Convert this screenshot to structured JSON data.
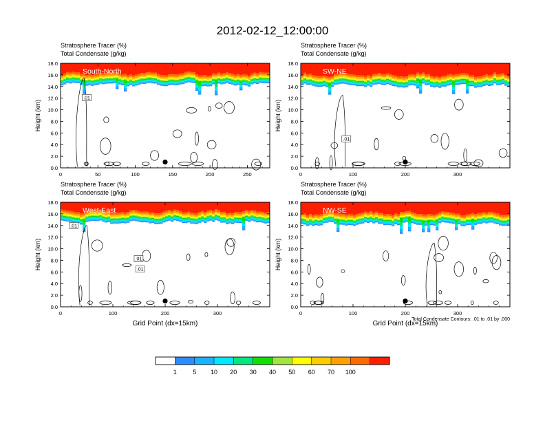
{
  "title": "2012-02-12_12:00:00",
  "chart_data": {
    "type": "heatmap",
    "title": "2012-02-12_12:00:00",
    "field_labels": {
      "tracer": "Stratosphere Tracer",
      "tracer_unit": "(%)",
      "condensate": "Total Condensate",
      "condensate_unit": "(g/kg)"
    },
    "ylabel": "Height (km)",
    "xlabel": "Grid Point (dx=15km)",
    "ylim": [
      0,
      18
    ],
    "yticks": [
      "0.0",
      "2.0",
      "4.0",
      "6.0",
      "8.0",
      "10.0",
      "12.0",
      "14.0",
      "16.0",
      "18.0"
    ],
    "contour_note": "Total Condensate Contours: .01 to .01 by .000",
    "colorbar": {
      "labels": [
        "1",
        "5",
        "10",
        "20",
        "30",
        "40",
        "50",
        "60",
        "70",
        "100"
      ],
      "colors": [
        "#ffffff",
        "#2d8cff",
        "#1ab2ff",
        "#00e7ff",
        "#00e67d",
        "#10e000",
        "#a0e63c",
        "#ffff00",
        "#ffcc00",
        "#ffa000",
        "#ff6a00",
        "#ff1e00"
      ]
    },
    "panels": [
      {
        "label": "South-North",
        "xlim": [
          0,
          280
        ],
        "xticks": [
          0,
          50,
          100,
          150,
          200,
          250
        ],
        "show_xlabel": false,
        "contour_labels": [
          ".01"
        ]
      },
      {
        "label": "SW-NE",
        "xlim": [
          0,
          400
        ],
        "xticks": [
          0,
          100,
          200,
          300
        ],
        "show_xlabel": false,
        "contour_labels": [
          ".01"
        ]
      },
      {
        "label": "West-East",
        "xlim": [
          0,
          400
        ],
        "xticks": [
          0,
          100,
          200,
          300
        ],
        "show_xlabel": true,
        "contour_labels": [
          ".01",
          ".01",
          ".01"
        ]
      },
      {
        "label": "NW-SE",
        "xlim": [
          0,
          400
        ],
        "xticks": [
          0,
          100,
          200,
          300
        ],
        "show_xlabel": true,
        "contour_labels": [],
        "show_note": true
      }
    ]
  }
}
